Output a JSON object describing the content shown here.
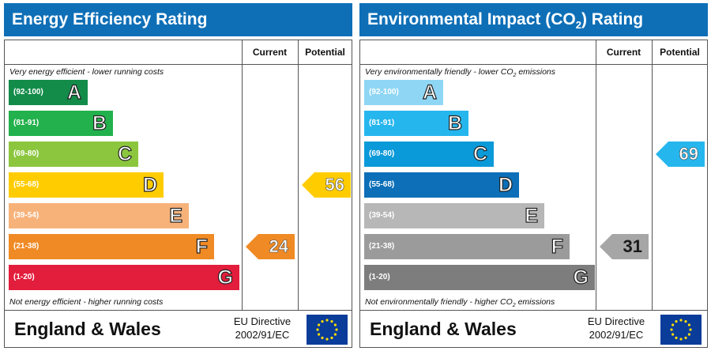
{
  "chart_data": [
    {
      "type": "bar",
      "title": "Energy Efficiency Rating",
      "columns": [
        "Current",
        "Potential"
      ],
      "top_note": "Very energy efficient - lower running costs",
      "bottom_note": "Not energy efficient - higher running costs",
      "bands": [
        {
          "range": "(92-100)",
          "letter": "A",
          "color": "#138c4a"
        },
        {
          "range": "(81-91)",
          "letter": "B",
          "color": "#22b14c"
        },
        {
          "range": "(69-80)",
          "letter": "C",
          "color": "#8cc63f"
        },
        {
          "range": "(55-68)",
          "letter": "D",
          "color": "#ffcc00"
        },
        {
          "range": "(39-54)",
          "letter": "E",
          "color": "#f7b27a"
        },
        {
          "range": "(21-38)",
          "letter": "F",
          "color": "#f08a24"
        },
        {
          "range": "(1-20)",
          "letter": "G",
          "color": "#e31d3c"
        }
      ],
      "current": {
        "value": "24",
        "band": "F",
        "color": "#f08a24"
      },
      "potential": {
        "value": "56",
        "band": "D",
        "color": "#ffcc00"
      },
      "country": "England & Wales",
      "directive": [
        "EU Directive",
        "2002/91/EC"
      ]
    },
    {
      "type": "bar",
      "title": "Environmental Impact (CO2) Rating",
      "title_parts": [
        "Environmental Impact (CO",
        "2",
        ") Rating"
      ],
      "columns": [
        "Current",
        "Potential"
      ],
      "top_note_parts": [
        "Very environmentally friendly - lower CO",
        "2",
        " emissions"
      ],
      "bottom_note_parts": [
        "Not environmentally friendly - higher CO",
        "2",
        " emissions"
      ],
      "bands": [
        {
          "range": "(92-100)",
          "letter": "A",
          "color": "#8fd6f5"
        },
        {
          "range": "(81-91)",
          "letter": "B",
          "color": "#26b6ee"
        },
        {
          "range": "(69-80)",
          "letter": "C",
          "color": "#0b9ad9"
        },
        {
          "range": "(55-68)",
          "letter": "D",
          "color": "#0c6fb8"
        },
        {
          "range": "(39-54)",
          "letter": "E",
          "color": "#b7b7b7"
        },
        {
          "range": "(21-38)",
          "letter": "F",
          "color": "#9b9b9b"
        },
        {
          "range": "(1-20)",
          "letter": "G",
          "color": "#7d7d7d"
        }
      ],
      "current": {
        "value": "31",
        "band": "F",
        "color": "#a6a6a6"
      },
      "potential": {
        "value": "69",
        "band": "C",
        "color": "#26b6ee"
      },
      "country": "England & Wales",
      "directive": [
        "EU Directive",
        "2002/91/EC"
      ]
    }
  ]
}
